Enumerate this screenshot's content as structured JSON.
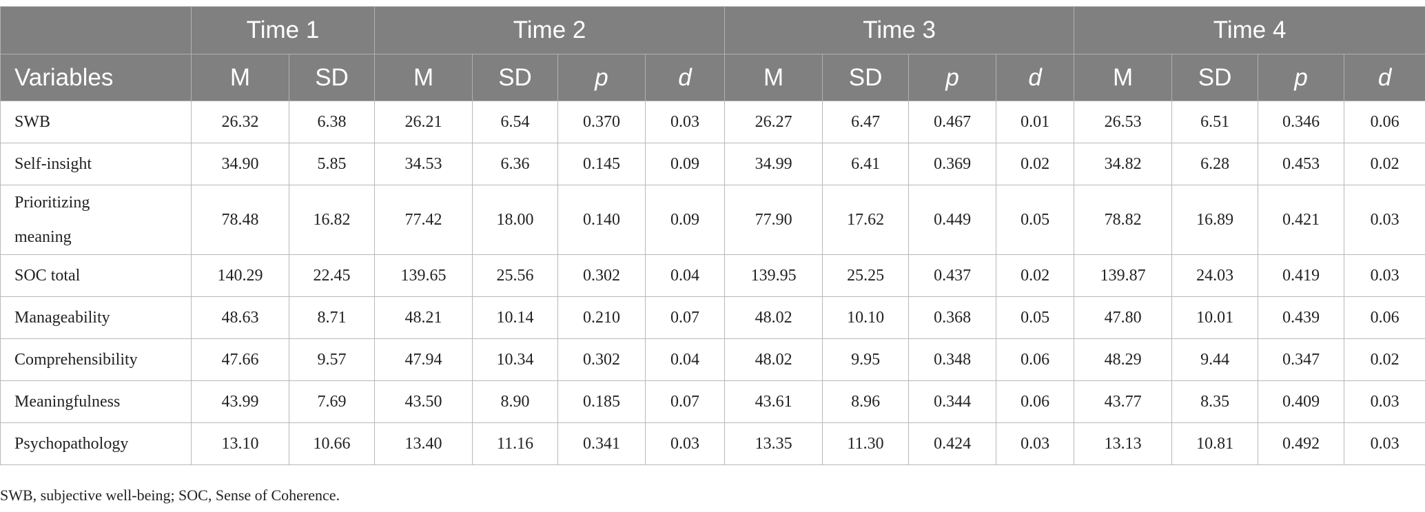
{
  "table": {
    "groups": [
      "Time 1",
      "Time 2",
      "Time 3",
      "Time 4"
    ],
    "columns": [
      "Variables",
      "M",
      "SD",
      "M",
      "SD",
      "p",
      "d",
      "M",
      "SD",
      "p",
      "d",
      "M",
      "SD",
      "p",
      "d"
    ],
    "rows": [
      [
        "SWB",
        "26.32",
        "6.38",
        "26.21",
        "6.54",
        "0.370",
        "0.03",
        "26.27",
        "6.47",
        "0.467",
        "0.01",
        "26.53",
        "6.51",
        "0.346",
        "0.06"
      ],
      [
        "Self-insight",
        "34.90",
        "5.85",
        "34.53",
        "6.36",
        "0.145",
        "0.09",
        "34.99",
        "6.41",
        "0.369",
        "0.02",
        "34.82",
        "6.28",
        "0.453",
        "0.02"
      ],
      [
        "Prioritizing meaning",
        "78.48",
        "16.82",
        "77.42",
        "18.00",
        "0.140",
        "0.09",
        "77.90",
        "17.62",
        "0.449",
        "0.05",
        "78.82",
        "16.89",
        "0.421",
        "0.03"
      ],
      [
        "SOC total",
        "140.29",
        "22.45",
        "139.65",
        "25.56",
        "0.302",
        "0.04",
        "139.95",
        "25.25",
        "0.437",
        "0.02",
        "139.87",
        "24.03",
        "0.419",
        "0.03"
      ],
      [
        "Manageability",
        "48.63",
        "8.71",
        "48.21",
        "10.14",
        "0.210",
        "0.07",
        "48.02",
        "10.10",
        "0.368",
        "0.05",
        "47.80",
        "10.01",
        "0.439",
        "0.06"
      ],
      [
        "Comprehensibility",
        "47.66",
        "9.57",
        "47.94",
        "10.34",
        "0.302",
        "0.04",
        "48.02",
        "9.95",
        "0.348",
        "0.06",
        "48.29",
        "9.44",
        "0.347",
        "0.02"
      ],
      [
        "Meaningfulness",
        "43.99",
        "7.69",
        "43.50",
        "8.90",
        "0.185",
        "0.07",
        "43.61",
        "8.96",
        "0.344",
        "0.06",
        "43.77",
        "8.35",
        "0.409",
        "0.03"
      ],
      [
        "Psychopathology",
        "13.10",
        "10.66",
        "13.40",
        "11.16",
        "0.341",
        "0.03",
        "13.35",
        "11.30",
        "0.424",
        "0.03",
        "13.13",
        "10.81",
        "0.492",
        "0.03"
      ]
    ]
  },
  "footnote": "SWB, subjective well-being; SOC, Sense of Coherence."
}
